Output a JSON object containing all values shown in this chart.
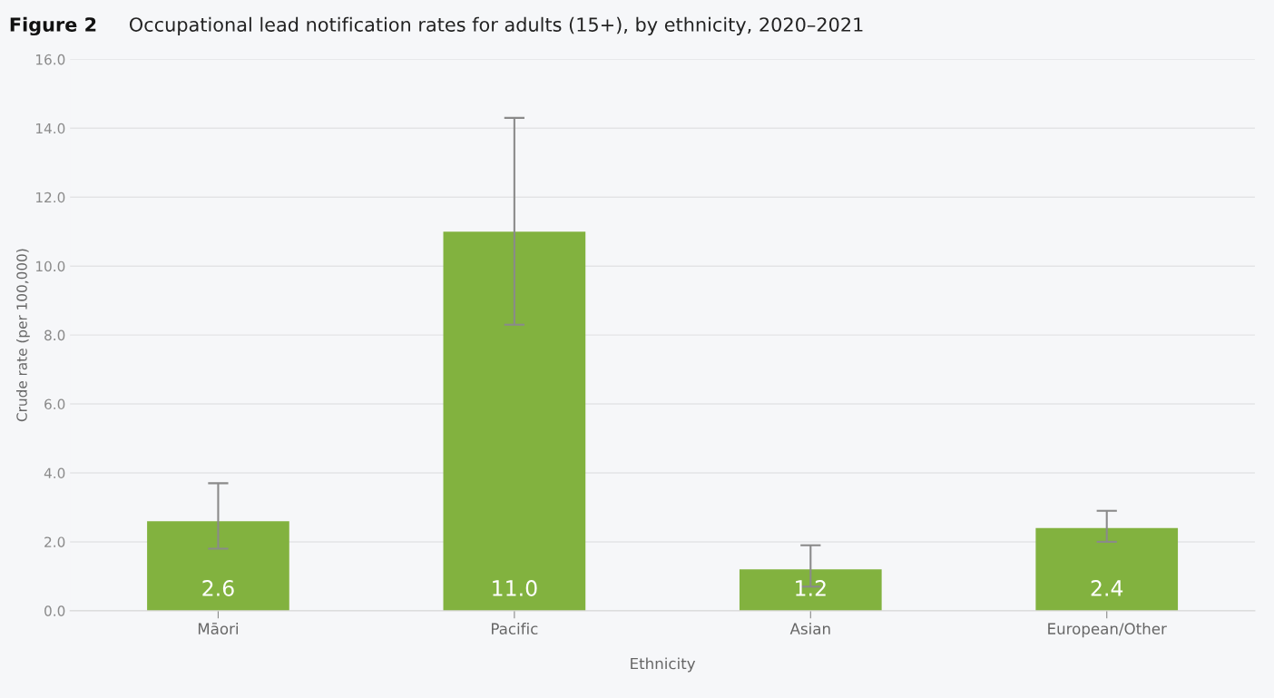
{
  "chart_data": {
    "type": "bar",
    "title": "Figure 2",
    "subtitle": "Occupational lead notification rates for adults (15+), by ethnicity, 2020–2021",
    "xlabel": "Ethnicity",
    "ylabel": "Crude rate (per 100,000)",
    "categories": [
      "Māori",
      "Pacific",
      "Asian",
      "European/Other"
    ],
    "values": [
      2.6,
      11.0,
      1.2,
      2.4
    ],
    "errors": [
      [
        1.8,
        3.7
      ],
      [
        8.3,
        14.3
      ],
      [
        0.7,
        1.9
      ],
      [
        2.0,
        2.9
      ]
    ],
    "value_labels": [
      "2.6",
      "11.0",
      "1.2",
      "2.4"
    ],
    "color": "#82b23f",
    "ylim": [
      0,
      16
    ],
    "yticks": [
      {
        "value": 0,
        "label": "0.0"
      },
      {
        "value": 2,
        "label": "2.0"
      },
      {
        "value": 4,
        "label": "4.0"
      },
      {
        "value": 6,
        "label": "6.0"
      },
      {
        "value": 8,
        "label": "8.0"
      },
      {
        "value": 10,
        "label": "10.0"
      },
      {
        "value": 12,
        "label": "12.0"
      },
      {
        "value": 14,
        "label": "14.0"
      },
      {
        "value": 16,
        "label": "16.0"
      }
    ],
    "grid": "y",
    "legend": false
  }
}
